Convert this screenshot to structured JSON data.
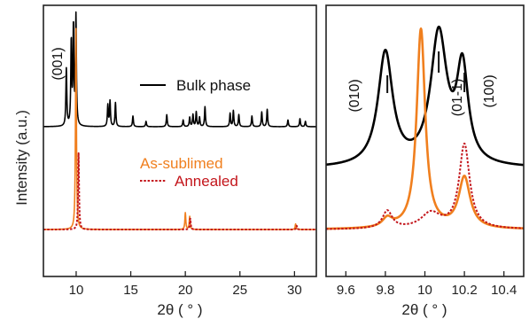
{
  "chart_data": [
    {
      "type": "line",
      "panel": "left",
      "xlabel": "2θ ( ° )",
      "ylabel": "Intensity (a.u.)",
      "xlim": [
        7,
        32
      ],
      "xticks": [
        10,
        15,
        20,
        25,
        30
      ],
      "grid": false,
      "legend": [
        {
          "name": "Bulk phase",
          "color": "#000000",
          "style": "solid"
        },
        {
          "name": "As-sublimed",
          "color": "#f07f1e",
          "style": "solid"
        },
        {
          "name": "Annealed",
          "color": "#c3151b",
          "style": "dotted"
        }
      ],
      "annotations": [
        "(001)"
      ],
      "series": [
        {
          "name": "Bulk phase",
          "color": "#000000",
          "baseline": 0.2,
          "peaks": [
            [
              9.1,
              0.43
            ],
            [
              9.55,
              0.63
            ],
            [
              9.75,
              0.74
            ],
            [
              9.98,
              0.82
            ],
            [
              12.9,
              0.16
            ],
            [
              13.1,
              0.19
            ],
            [
              13.6,
              0.18
            ],
            [
              15.2,
              0.08
            ],
            [
              16.4,
              0.04
            ],
            [
              18.3,
              0.09
            ],
            [
              19.8,
              0.05
            ],
            [
              20.4,
              0.07
            ],
            [
              20.7,
              0.09
            ],
            [
              21.0,
              0.11
            ],
            [
              21.3,
              0.07
            ],
            [
              21.8,
              0.15
            ],
            [
              24.1,
              0.1
            ],
            [
              24.4,
              0.12
            ],
            [
              24.9,
              0.09
            ],
            [
              26.1,
              0.08
            ],
            [
              27.0,
              0.11
            ],
            [
              27.5,
              0.13
            ],
            [
              29.4,
              0.05
            ],
            [
              30.5,
              0.06
            ],
            [
              31.0,
              0.04
            ]
          ]
        },
        {
          "name": "As-sublimed",
          "color": "#f07f1e",
          "baseline": 0.03,
          "peaks": [
            [
              9.98,
              1.08
            ],
            [
              20.0,
              0.09
            ],
            [
              20.4,
              0.07
            ],
            [
              30.1,
              0.03
            ]
          ]
        },
        {
          "name": "Annealed",
          "color": "#c3151b",
          "baseline": 0.03,
          "peaks": [
            [
              10.22,
              0.41
            ],
            [
              20.45,
              0.06
            ],
            [
              30.2,
              0.02
            ]
          ]
        }
      ]
    },
    {
      "type": "line",
      "panel": "right",
      "xlabel": "2θ ( ° )",
      "xlim": [
        9.5,
        10.5
      ],
      "xticks": [
        9.6,
        9.8,
        10.0,
        10.2,
        10.4
      ],
      "xtick_labels": [
        "9.6",
        "9.8",
        "10",
        "10.2",
        "10.4"
      ],
      "grid": false,
      "annotations": [
        {
          "label": "(010)",
          "x": 9.8
        },
        {
          "label": "(01-1)",
          "x": 10.07
        },
        {
          "label": "(100)",
          "x": 10.2
        }
      ],
      "series": [
        {
          "name": "Bulk phase",
          "color": "#000000",
          "baseline": 0.7,
          "peaks": [
            [
              9.8,
              0.64,
              0.045
            ],
            [
              10.07,
              0.74,
              0.05
            ],
            [
              10.19,
              0.53,
              0.035
            ]
          ]
        },
        {
          "name": "As-sublimed",
          "color": "#f07f1e",
          "baseline": 0.015,
          "peaks": [
            [
              9.98,
              0.9,
              0.026
            ],
            [
              9.81,
              0.04,
              0.03
            ],
            [
              10.2,
              0.23,
              0.035
            ]
          ]
        },
        {
          "name": "Annealed",
          "color": "#c3151b",
          "baseline": 0.015,
          "peaks": [
            [
              9.81,
              0.08,
              0.03
            ],
            [
              10.03,
              0.07,
              0.06
            ],
            [
              10.2,
              0.38,
              0.032
            ]
          ]
        }
      ]
    }
  ]
}
